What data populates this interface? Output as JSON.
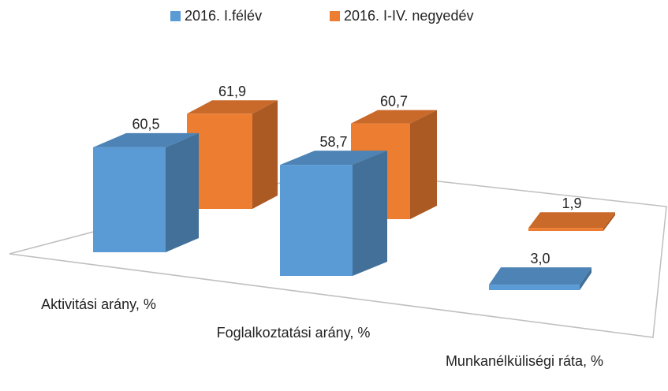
{
  "chart_data": {
    "type": "bar3d",
    "categories": [
      "Aktivitási arány, %",
      "Foglalkoztatási arány, %",
      "Munkanélküliségi ráta, %"
    ],
    "series": [
      {
        "name": "2016. I.félév",
        "color": "#5b9bd5",
        "values": [
          60.5,
          58.7,
          3.0
        ],
        "value_labels": [
          "60,5",
          "58,7",
          "3,0"
        ]
      },
      {
        "name": "2016. I-IV. negyedév",
        "color": "#ed7d31",
        "values": [
          61.9,
          60.7,
          1.9
        ],
        "value_labels": [
          "61,9",
          "60,7",
          "1,9"
        ]
      }
    ],
    "legend": "top"
  }
}
